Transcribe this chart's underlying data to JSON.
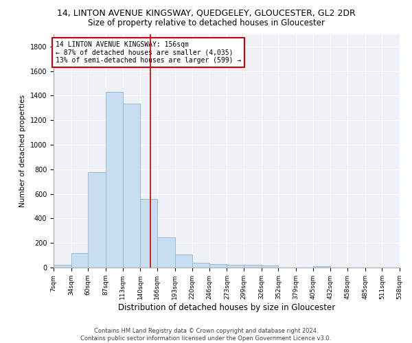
{
  "title": "14, LINTON AVENUE KINGSWAY, QUEDGELEY, GLOUCESTER, GL2 2DR",
  "subtitle": "Size of property relative to detached houses in Gloucester",
  "xlabel": "Distribution of detached houses by size in Gloucester",
  "ylabel": "Number of detached properties",
  "bar_color": "#c8ddf0",
  "bar_edge_color": "#8ab4d4",
  "annotation_box_color": "#cc0000",
  "vline_color": "#cc0000",
  "vline_x": 156,
  "annotation_text": "14 LINTON AVENUE KINGSWAY: 156sqm\n← 87% of detached houses are smaller (4,035)\n13% of semi-detached houses are larger (599) →",
  "footnote": "Contains HM Land Registry data © Crown copyright and database right 2024.\nContains public sector information licensed under the Open Government Licence v3.0.",
  "bin_edges": [
    7,
    34,
    60,
    87,
    113,
    140,
    166,
    193,
    220,
    246,
    273,
    299,
    326,
    352,
    379,
    405,
    432,
    458,
    485,
    511,
    538
  ],
  "bar_heights": [
    20,
    120,
    775,
    1430,
    1335,
    560,
    245,
    105,
    40,
    30,
    25,
    20,
    15,
    0,
    0,
    10,
    0,
    0,
    0,
    0
  ],
  "ylim": [
    0,
    1900
  ],
  "yticks": [
    0,
    200,
    400,
    600,
    800,
    1000,
    1200,
    1400,
    1600,
    1800
  ],
  "background_color": "#eef2f7",
  "title_fontsize": 9,
  "subtitle_fontsize": 8.5,
  "xlabel_fontsize": 8.5,
  "ylabel_fontsize": 7.5,
  "tick_fontsize": 6.5,
  "footnote_fontsize": 6
}
